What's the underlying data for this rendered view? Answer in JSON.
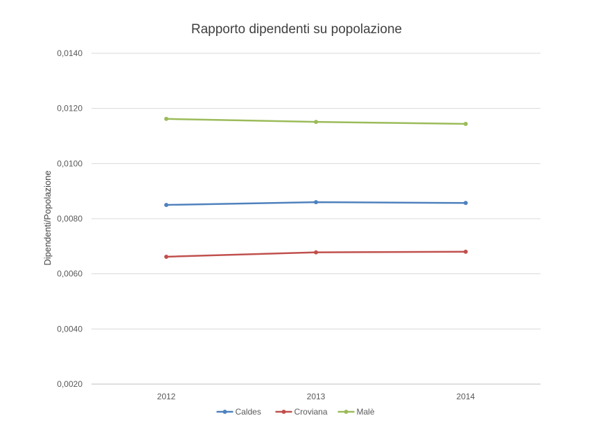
{
  "chart_data": {
    "type": "line",
    "title": "Rapporto dipendenti su popolazione",
    "xlabel": "",
    "ylabel": "Dipendenti/Popolazione",
    "categories": [
      "2012",
      "2013",
      "2014"
    ],
    "ylim": [
      0.002,
      0.014
    ],
    "yticks": [
      0.002,
      0.004,
      0.006,
      0.008,
      0.01,
      0.012,
      0.014
    ],
    "ytick_labels": [
      "0,0020",
      "0,0040",
      "0,0060",
      "0,0080",
      "0,0100",
      "0,0120",
      "0,0140"
    ],
    "grid": true,
    "legend_position": "bottom",
    "series": [
      {
        "name": "Caldes",
        "color": "#4F81BD",
        "values": [
          0.0085,
          0.0086,
          0.00857
        ]
      },
      {
        "name": "Croviana",
        "color": "#C0504D",
        "values": [
          0.00662,
          0.00678,
          0.0068
        ]
      },
      {
        "name": "Malè",
        "color": "#9BBB59",
        "values": [
          0.01162,
          0.01151,
          0.01144
        ]
      }
    ]
  }
}
